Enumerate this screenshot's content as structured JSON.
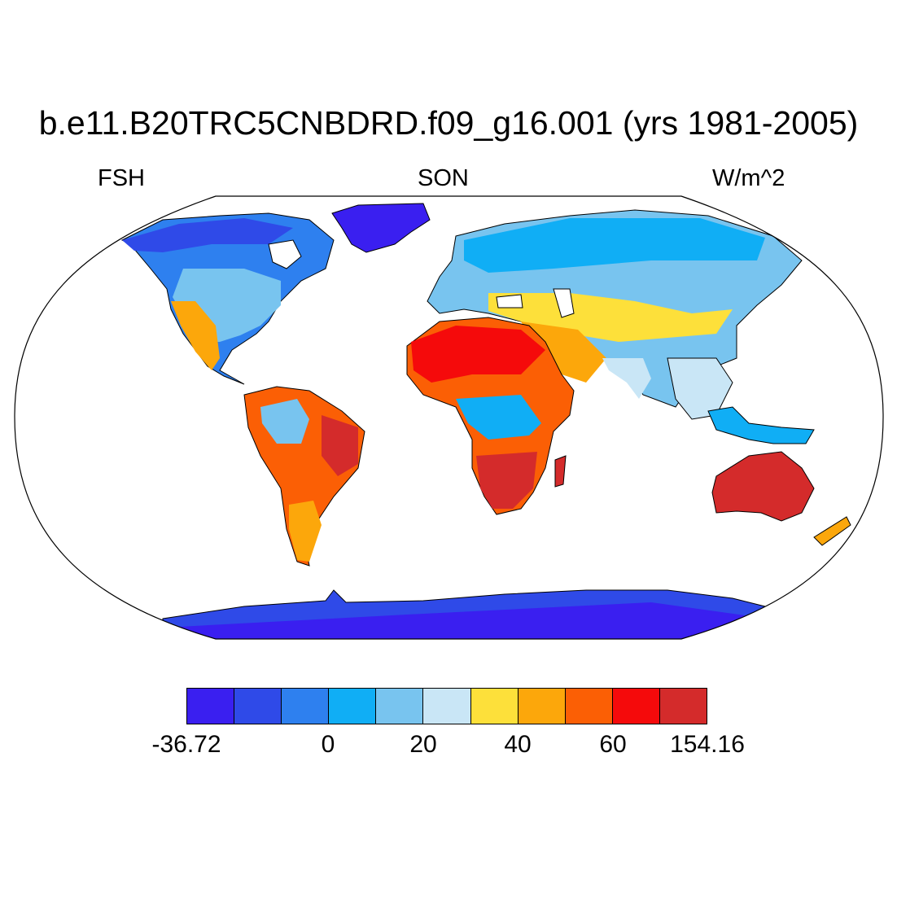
{
  "title": "b.e11.B20TRC5CNBDRD.f09_g16.001 (yrs 1981-2005)",
  "subtitle_left": "FSH",
  "subtitle_center": "SON",
  "subtitle_right": "W/m^2",
  "colorbar": {
    "colors": [
      "#3a1ff0",
      "#2f4ae8",
      "#2e80ef",
      "#10aef5",
      "#78c4ef",
      "#c9e6f6",
      "#fde03a",
      "#fca70b",
      "#fb5f05",
      "#f50a0b",
      "#d42b2b"
    ],
    "tick_labels": [
      "-36.72",
      "0",
      "20",
      "40",
      "60",
      "154.16"
    ]
  },
  "map": {
    "projection": "Robinson",
    "variable": "FSH",
    "season": "SON",
    "units": "W/m^2"
  }
}
